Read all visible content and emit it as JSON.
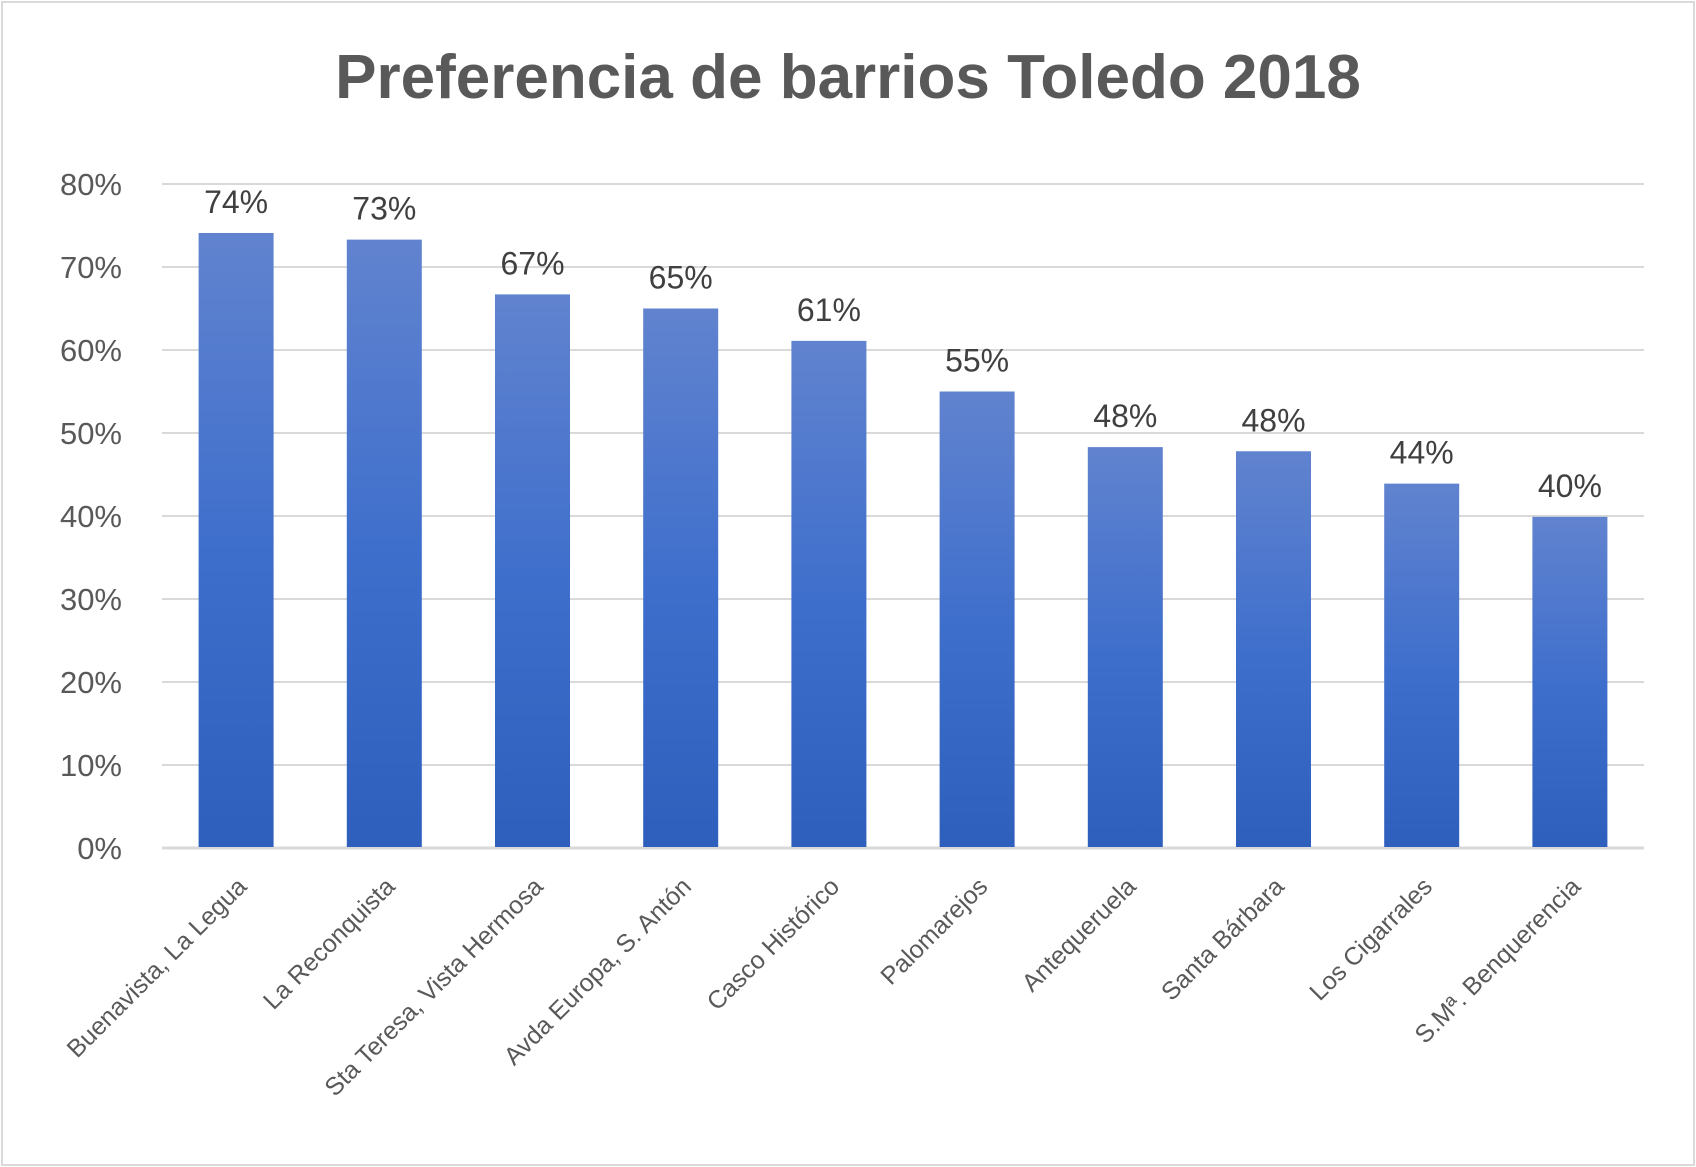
{
  "chart_data": {
    "type": "bar",
    "title": "Preferencia de barrios Toledo 2018",
    "categories": [
      "Buenavista, La Legua",
      "La Reconquista",
      "Sta Teresa, Vista Hermosa",
      "Avda Europa, S. Antón",
      "Casco Histórico",
      "Palomarejos",
      "Antequeruela",
      "Santa Bárbara",
      "Los Cigarrales",
      "S.Mª. Benquerencia"
    ],
    "values": [
      74.1,
      73.3,
      66.7,
      65.0,
      61.1,
      55.0,
      48.3,
      47.8,
      43.9,
      39.9
    ],
    "data_labels": [
      "74%",
      "73%",
      "67%",
      "65%",
      "61%",
      "55%",
      "48%",
      "48%",
      "44%",
      "40%"
    ],
    "ylim": [
      0,
      80
    ],
    "yticks": [
      "0%",
      "10%",
      "20%",
      "30%",
      "40%",
      "50%",
      "60%",
      "70%",
      "80%"
    ],
    "xlabel": "",
    "ylabel": "",
    "grid": true,
    "legend": "none",
    "colors": {
      "bar_top": "#6183cf",
      "bar_bottom": "#2e5fbc",
      "grid": "#d9d9d9",
      "text": "#595959"
    }
  }
}
